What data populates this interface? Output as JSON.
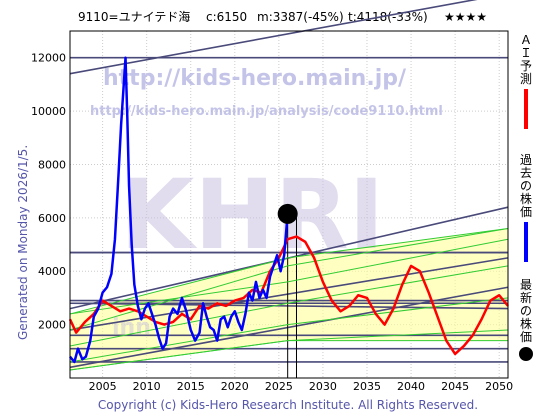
{
  "header": {
    "code_name": "9110=ユナイテド海",
    "current": "c:6150",
    "min": "m:3387(-45%)",
    "target": "t:4118(-33%)",
    "rating": "★★★★"
  },
  "watermark": {
    "url_main": "http://kids-hero.main.jp/",
    "url_analysis": "http://kids-hero.main.jp/analysis/code9110.html",
    "logo": "KHRI",
    "faint": "inn"
  },
  "side_left": "Generated on Monday 2026/1/5.",
  "footer": "Copyright (c) Kids-Hero Research Institute. All Rights Reserved.",
  "legend": [
    {
      "label": "ＡＩ予測",
      "color": "#ff0000",
      "symbol": "line"
    },
    {
      "label": "過去の株価",
      "color": "#0000ff",
      "symbol": "line"
    },
    {
      "label": "最新の株価",
      "color": "#000000",
      "symbol": "dot"
    }
  ],
  "colors": {
    "past": "#0000ff",
    "forecast": "#ff0000",
    "trend": "#4a4a7a",
    "band_green": "#33cc33",
    "band_fill": "#ffff99"
  },
  "chart_data": {
    "type": "line",
    "xlim": [
      2001.3,
      2051
    ],
    "ylim": [
      0,
      13000
    ],
    "x_ticks": [
      2005,
      2010,
      2015,
      2020,
      2025,
      2030,
      2035,
      2040,
      2045,
      2050
    ],
    "y_ticks": [
      2000,
      4000,
      6000,
      8000,
      10000,
      12000
    ],
    "grid": true,
    "latest": {
      "x": 2026.0,
      "y": 6150
    },
    "series": [
      {
        "role": "past",
        "x": [
          2001.3,
          2001.8,
          2002.2,
          2002.7,
          2003.1,
          2003.6,
          2004.0,
          2004.5,
          2005.0,
          2005.5,
          2006.0,
          2006.4,
          2006.8,
          2007.1,
          2007.4,
          2007.6,
          2007.8,
          2008.0,
          2008.3,
          2008.6,
          2009.0,
          2009.4,
          2009.8,
          2010.2,
          2010.6,
          2011.0,
          2011.4,
          2011.8,
          2012.2,
          2012.6,
          2013.0,
          2013.5,
          2014.0,
          2014.5,
          2015.0,
          2015.5,
          2016.0,
          2016.4,
          2016.8,
          2017.2,
          2017.6,
          2018.0,
          2018.4,
          2018.8,
          2019.2,
          2019.6,
          2020.0,
          2020.4,
          2020.8,
          2021.2,
          2021.6,
          2022.0,
          2022.4,
          2022.8,
          2023.2,
          2023.6,
          2024.0,
          2024.4,
          2024.8,
          2025.2,
          2025.6,
          2026.0
        ],
        "y": [
          800,
          600,
          1100,
          700,
          800,
          1400,
          2300,
          2600,
          3200,
          3400,
          3900,
          5200,
          7600,
          9500,
          11000,
          12000,
          9800,
          7200,
          5000,
          3500,
          2700,
          2200,
          2600,
          2800,
          2400,
          2000,
          1500,
          1100,
          1300,
          2300,
          2600,
          2400,
          3000,
          2500,
          1800,
          1400,
          1700,
          2800,
          2300,
          1900,
          1800,
          1400,
          2200,
          2300,
          1900,
          2300,
          2500,
          2100,
          1800,
          2400,
          3200,
          2900,
          3600,
          3000,
          3300,
          3000,
          3800,
          4200,
          4600,
          4000,
          4600,
          6150
        ]
      },
      {
        "role": "forecast",
        "x": [
          2001.3,
          2002.0,
          2003.0,
          2004.0,
          2005.0,
          2006.0,
          2007.0,
          2008.0,
          2009.0,
          2010.0,
          2011.0,
          2012.0,
          2013.0,
          2014.0,
          2015.0,
          2016.0,
          2017.0,
          2018.0,
          2019.0,
          2020.0,
          2021.0,
          2022.0,
          2023.0,
          2024.0,
          2025.0,
          2026.0,
          2027.0,
          2028.0,
          2029.0,
          2030.0,
          2031.0,
          2032.0,
          2033.0,
          2034.0,
          2035.0,
          2036.0,
          2037.0,
          2038.0,
          2039.0,
          2040.0,
          2041.0,
          2042.0,
          2043.0,
          2044.0,
          2045.0,
          2046.0,
          2047.0,
          2048.0,
          2049.0,
          2050.0,
          2051.0
        ],
        "y": [
          2200,
          1700,
          2100,
          2400,
          2900,
          2700,
          2500,
          2600,
          2500,
          2300,
          2100,
          2000,
          2100,
          2400,
          2200,
          2700,
          2600,
          2800,
          2700,
          2900,
          3000,
          3300,
          3200,
          4000,
          4500,
          5200,
          5300,
          5100,
          4500,
          3600,
          2900,
          2500,
          2700,
          3100,
          3000,
          2400,
          2000,
          2600,
          3500,
          4200,
          4000,
          3200,
          2300,
          1400,
          900,
          1200,
          1600,
          2200,
          2900,
          3100,
          2700
        ]
      },
      {
        "role": "green-band",
        "x": [
          2001.3,
          2026,
          2051
        ],
        "y": [
          1200,
          2800,
          4200
        ]
      },
      {
        "role": "green-band",
        "x": [
          2001.3,
          2026,
          2051
        ],
        "y": [
          2400,
          3600,
          5200
        ]
      },
      {
        "role": "green-band",
        "x": [
          2001.3,
          2026,
          2051
        ],
        "y": [
          600,
          2000,
          3000
        ]
      },
      {
        "role": "green-band",
        "x": [
          2001.3,
          2026,
          2051
        ],
        "y": [
          1800,
          4200,
          5600
        ]
      },
      {
        "role": "green-band",
        "x": [
          2001.3,
          2026,
          2051
        ],
        "y": [
          300,
          1400,
          1800
        ]
      },
      {
        "role": "band-lower",
        "x": [
          2001.3,
          2026,
          2051
        ],
        "y": [
          300,
          1400,
          1400
        ]
      },
      {
        "role": "band-upper",
        "x": [
          2001.3,
          2026,
          2051
        ],
        "y": [
          2400,
          4500,
          5600
        ]
      }
    ],
    "h_lines": [
      600,
      1100,
      1600,
      2800,
      2900,
      4700,
      12000
    ],
    "trend_lines": [
      {
        "x": [
          2001.3,
          2051
        ],
        "y": [
          2600,
          6400
        ]
      },
      {
        "x": [
          2001.3,
          2051
        ],
        "y": [
          1800,
          4500
        ]
      },
      {
        "x": [
          2001.3,
          2051
        ],
        "y": [
          400,
          3400
        ]
      },
      {
        "x": [
          2001.3,
          2051
        ],
        "y": [
          11400,
          14400
        ]
      },
      {
        "x": [
          2001.3,
          2051
        ],
        "y": [
          2800,
          2600
        ]
      },
      {
        "x": [
          2001.3,
          2051
        ],
        "y": [
          4700,
          4700
        ]
      }
    ],
    "v_lines": [
      2026.0,
      2027.0
    ]
  }
}
